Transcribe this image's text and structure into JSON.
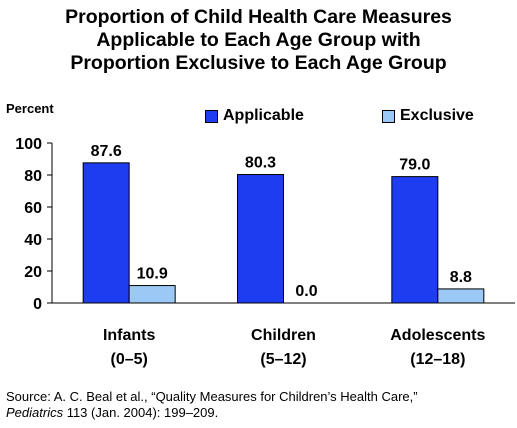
{
  "chart_data": {
    "type": "bar",
    "title_lines": [
      "Proportion of Child Health Care Measures",
      "Applicable to Each Age Group with",
      "Proportion Exclusive to Each Age Group"
    ],
    "ylabel": "Percent",
    "ylim": [
      0,
      100
    ],
    "yticks": [
      0,
      20,
      40,
      60,
      80,
      100
    ],
    "grid": false,
    "legend_position": "top-right",
    "categories": [
      {
        "line1": "Infants",
        "line2": "(0–5)"
      },
      {
        "line1": "Children",
        "line2": "(5–12)"
      },
      {
        "line1": "Adolescents",
        "line2": "(12–18)"
      }
    ],
    "series": [
      {
        "name": "Applicable",
        "color": "#1e3cf0",
        "values": [
          87.6,
          80.3,
          79.0
        ],
        "labels": [
          "87.6",
          "80.3",
          "79.0"
        ]
      },
      {
        "name": "Exclusive",
        "color": "#9cc8f5",
        "values": [
          10.9,
          0.0,
          8.8
        ],
        "labels": [
          "10.9",
          "0.0",
          "8.8"
        ]
      }
    ]
  },
  "source": {
    "line1": "Source: A. C. Beal et al., “Quality Measures for Children’s Health Care,”",
    "line2_italic": "Pediatrics",
    "line2_rest": " 113 (Jan. 2004): 199–209."
  }
}
